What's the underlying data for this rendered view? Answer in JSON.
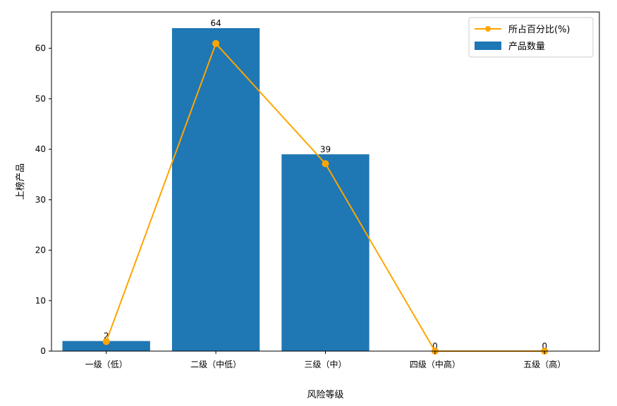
{
  "chart_data": {
    "type": "bar",
    "categories": [
      "一级（低）",
      "二级（中低）",
      "三级（中）",
      "四级（中高）",
      "五级（高）"
    ],
    "series": [
      {
        "name": "产品数量",
        "type": "bar",
        "values": [
          2,
          64,
          39,
          0,
          0
        ],
        "color": "#1f77b4"
      },
      {
        "name": "所占百分比(%)",
        "type": "line",
        "values": [
          1.9,
          60.95,
          37.14,
          0,
          0
        ],
        "color": "#ffa500"
      }
    ],
    "data_labels": [
      "2",
      "64",
      "39",
      "0",
      "0"
    ],
    "xlabel": "风险等级",
    "ylabel": "上榜产品",
    "ylim": [
      0,
      67.2
    ],
    "yticks": [
      0,
      10,
      20,
      30,
      40,
      50,
      60
    ],
    "grid": false,
    "legend_position": "top-right"
  }
}
